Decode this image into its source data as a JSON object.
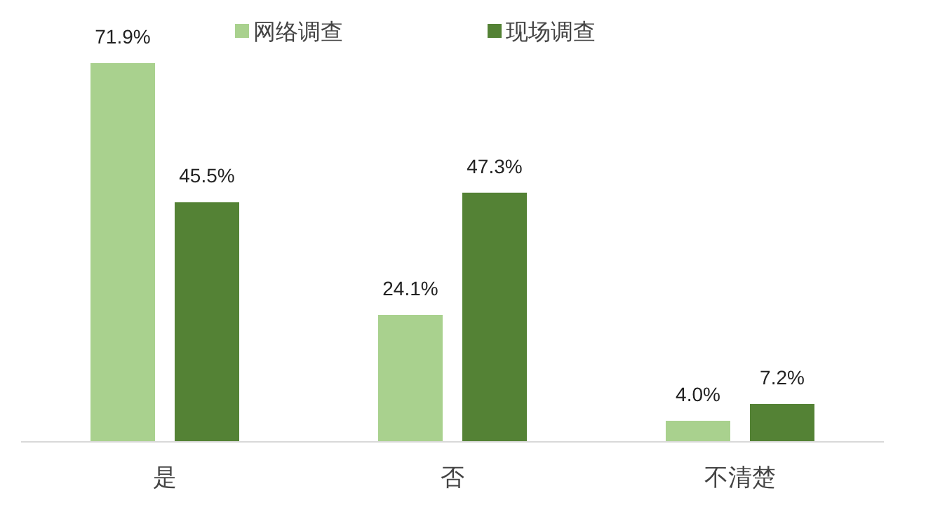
{
  "chart_data": {
    "type": "bar",
    "categories": [
      "是",
      "否",
      "不清楚"
    ],
    "series": [
      {
        "name": "网络调查",
        "color": "#a9d18e",
        "values": [
          71.9,
          24.1,
          4.0
        ],
        "value_labels": [
          "71.9%",
          "24.1%",
          "4.0%"
        ]
      },
      {
        "name": "现场调查",
        "color": "#548235",
        "values": [
          45.5,
          47.3,
          7.2
        ],
        "value_labels": [
          "45.5%",
          "47.3%",
          "7.2%"
        ]
      }
    ],
    "legend": "top"
  }
}
